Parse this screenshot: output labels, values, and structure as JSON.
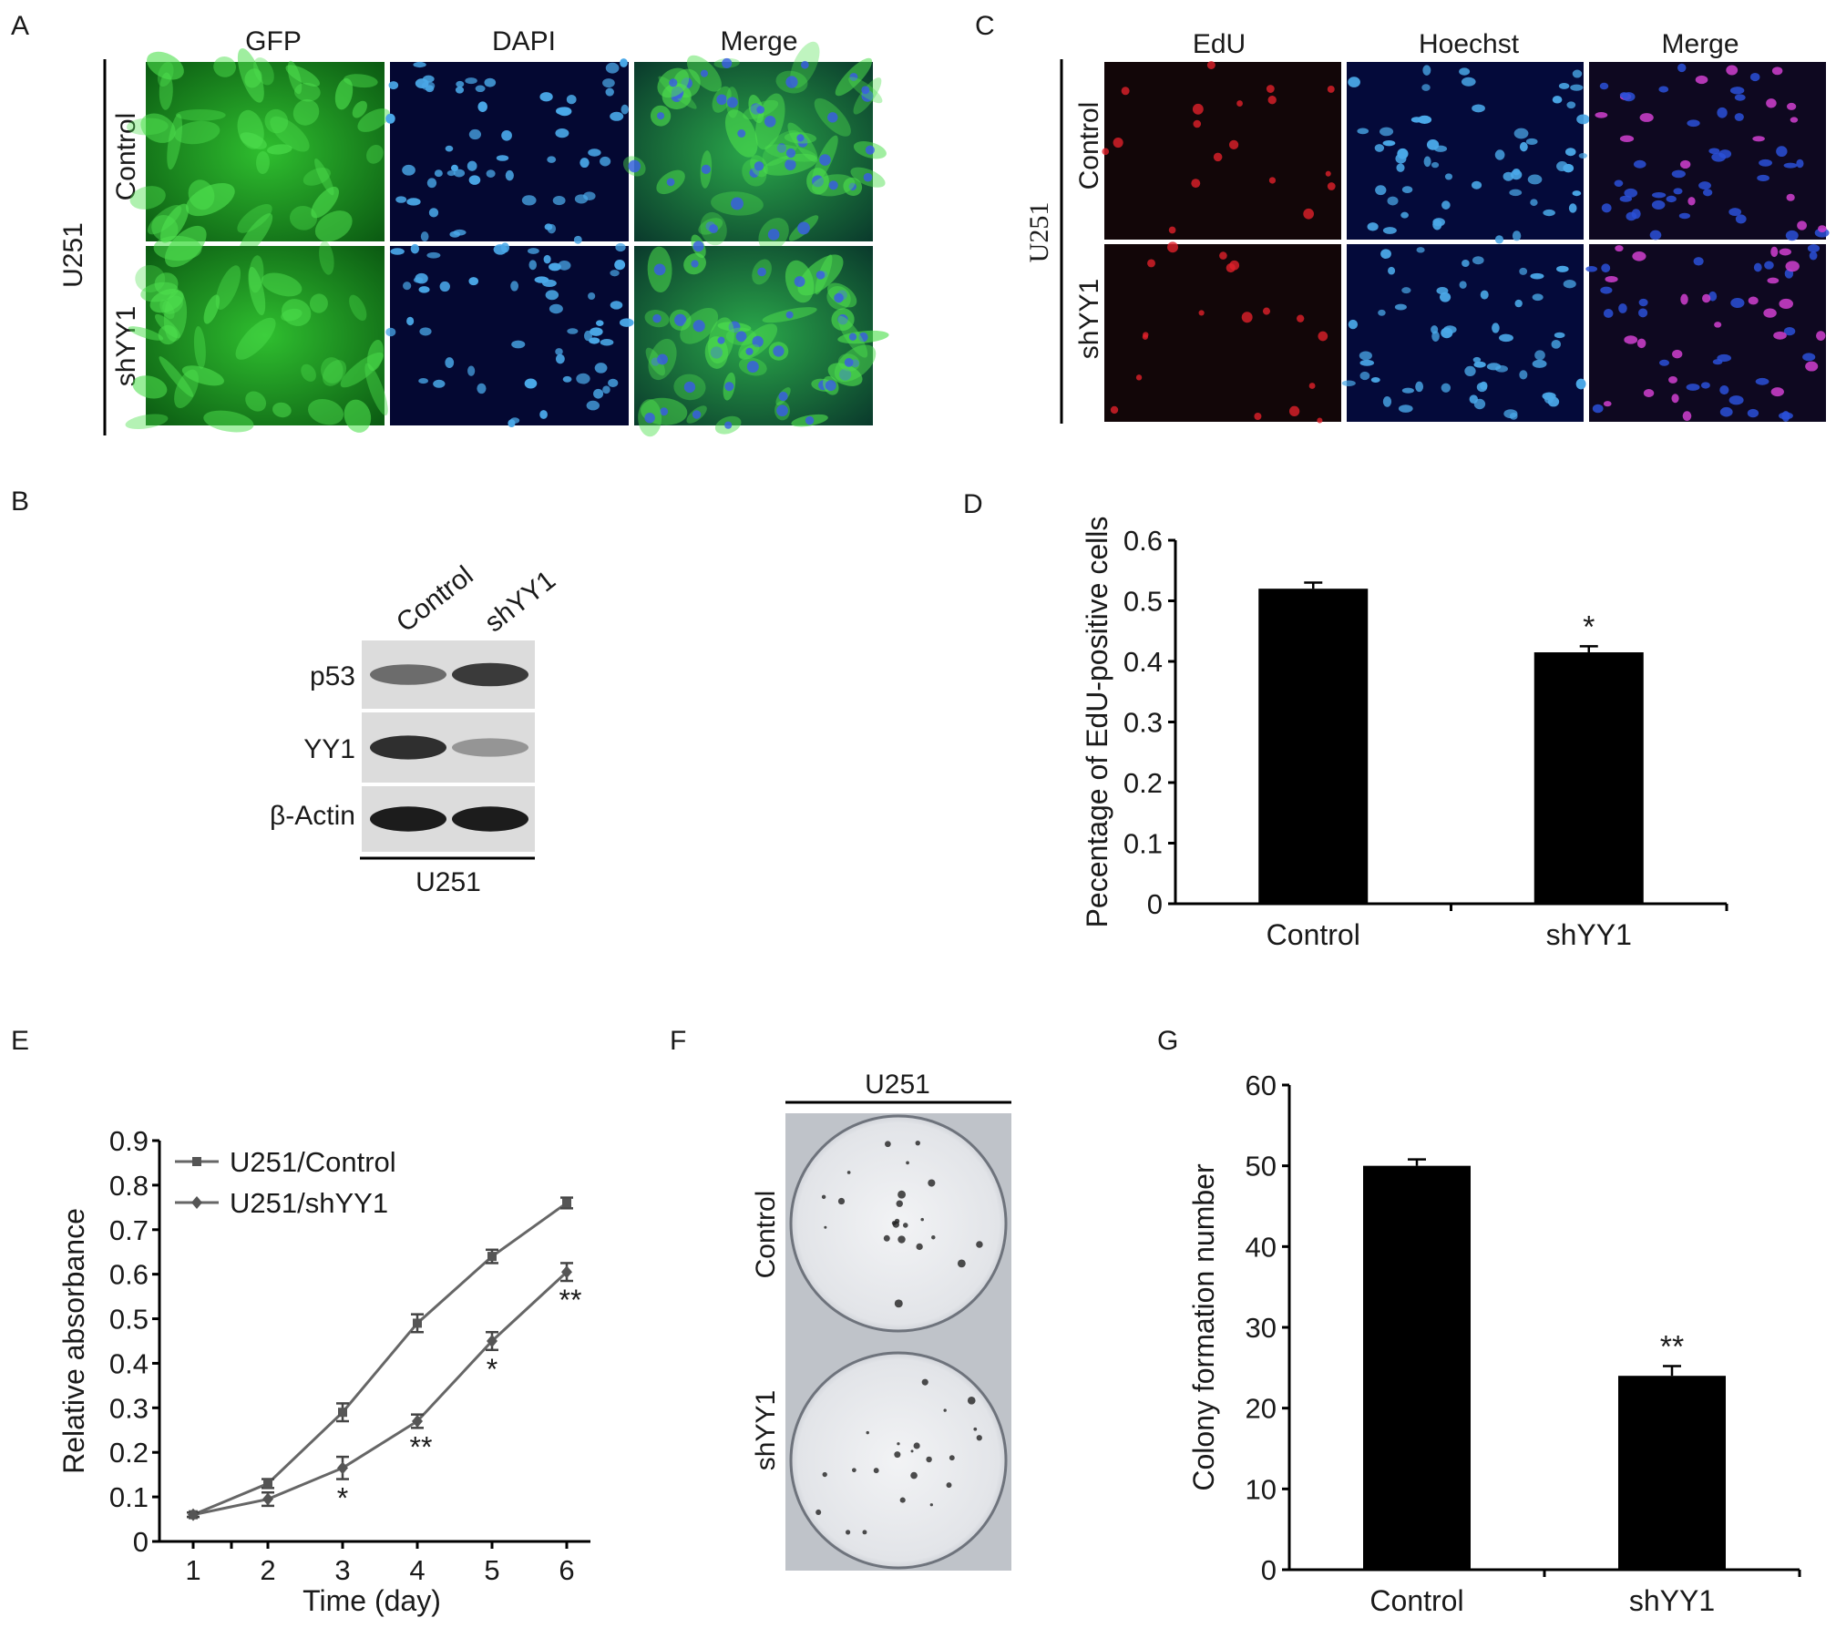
{
  "panel_letters": {
    "a": "A",
    "b": "B",
    "c": "C",
    "d": "D",
    "e": "E",
    "f": "F",
    "g": "G"
  },
  "panel_a": {
    "cell_line": "U251",
    "columns": [
      "GFP",
      "DAPI",
      "Merge"
    ],
    "rows": [
      "Control",
      "shYY1"
    ],
    "colors": {
      "gfp": "#1c9e1c",
      "dapi_bg": "#050a3a",
      "dapi_nuclei": "#4aa8e8",
      "merge": "#178a38"
    }
  },
  "panel_b": {
    "lanes": [
      "Control",
      "shYY1"
    ],
    "bands": [
      "p53",
      "YY1",
      "β-Actin"
    ],
    "cell_line": "U251"
  },
  "panel_c": {
    "cell_line": "U251",
    "columns": [
      "EdU",
      "Hoechst",
      "Merge"
    ],
    "rows": [
      "Control",
      "shYY1"
    ],
    "colors": {
      "edu": "#e0202a",
      "hoechst": "#3aa0e8",
      "merge": "#c040c0"
    }
  },
  "panel_f": {
    "cell_line": "U251",
    "rows": [
      "Control",
      "shYY1"
    ]
  },
  "chart_data": [
    {
      "id": "D",
      "type": "bar",
      "categories": [
        "Control",
        "shYY1"
      ],
      "values": [
        0.52,
        0.415
      ],
      "errors": [
        0.01,
        0.01
      ],
      "significance": [
        "",
        "*"
      ],
      "ylabel": "Pecentage of EdU-positive cells",
      "ylim": [
        0,
        0.6
      ],
      "yticks": [
        "0",
        "0.1",
        "0.2",
        "0.3",
        "0.4",
        "0.5",
        "0.6"
      ],
      "bar_color": "#000000"
    },
    {
      "id": "E",
      "type": "line",
      "x": [
        1,
        2,
        3,
        4,
        5,
        6
      ],
      "xticks": [
        "1",
        "2",
        "3",
        "4",
        "5",
        "6"
      ],
      "xlabel": "Time (day)",
      "ylabel": "Relative absorbance",
      "ylim": [
        0,
        0.9
      ],
      "yticks": [
        "0",
        "0.1",
        "0.2",
        "0.3",
        "0.4",
        "0.5",
        "0.6",
        "0.7",
        "0.8",
        "0.9"
      ],
      "legend_position": "top-left",
      "series": [
        {
          "name": "U251/Control",
          "marker": "square",
          "values": [
            0.06,
            0.13,
            0.29,
            0.49,
            0.64,
            0.76
          ],
          "errors": [
            0.005,
            0.01,
            0.02,
            0.02,
            0.015,
            0.012
          ],
          "significance": [
            "",
            "",
            "",
            "",
            "",
            ""
          ]
        },
        {
          "name": "U251/shYY1",
          "marker": "diamond",
          "values": [
            0.06,
            0.095,
            0.165,
            0.27,
            0.45,
            0.605
          ],
          "errors": [
            0.005,
            0.015,
            0.025,
            0.015,
            0.02,
            0.02
          ],
          "significance": [
            "",
            "",
            "*",
            "**",
            "*",
            "**"
          ]
        }
      ],
      "line_color": "#666666"
    },
    {
      "id": "G",
      "type": "bar",
      "categories": [
        "Control",
        "shYY1"
      ],
      "values": [
        50,
        24
      ],
      "errors": [
        0.8,
        1.2
      ],
      "significance": [
        "",
        "**"
      ],
      "ylabel": "Colony formation number",
      "ylim": [
        0,
        60
      ],
      "yticks": [
        "0",
        "10",
        "20",
        "30",
        "40",
        "50",
        "60"
      ],
      "bar_color": "#000000"
    }
  ]
}
